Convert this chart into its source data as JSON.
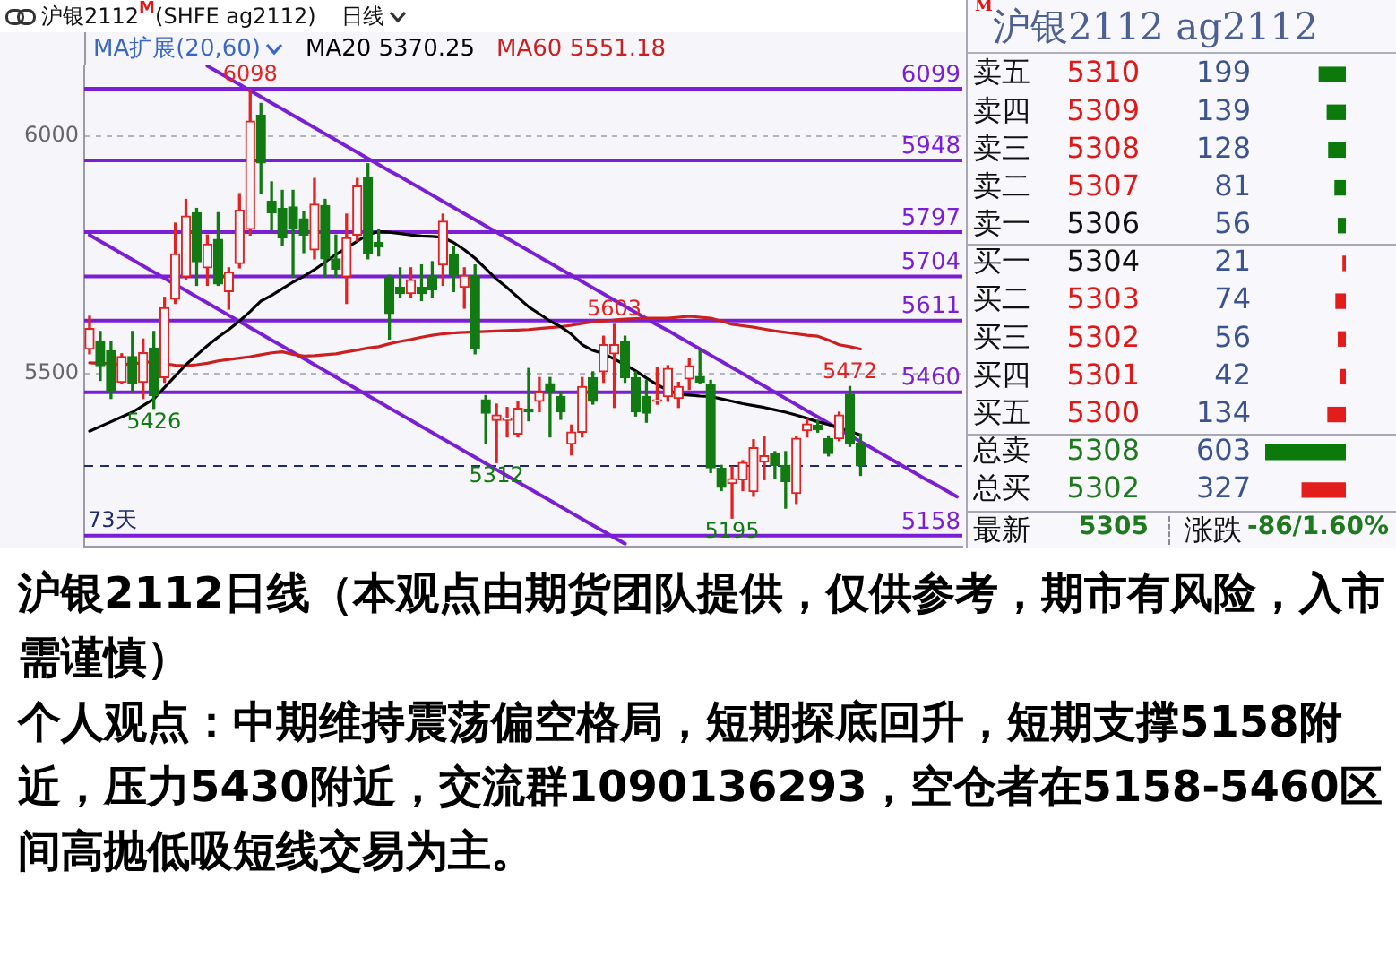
{
  "chart_data": [
    {
      "type": "candlestick",
      "title": "沪银2112$^{M}$(SHFE ag2112)",
      "subtitle": "日线",
      "legend_title": "MA扩展(20,60)",
      "legend": "top",
      "grid": "y",
      "tick_labels": "y",
      "categories": [
        null,
        null,
        null,
        null,
        null,
        null,
        null,
        null,
        null,
        null,
        null,
        null,
        null,
        null,
        null,
        null,
        null,
        null,
        null,
        null,
        null,
        null,
        null,
        null,
        null,
        null,
        null,
        null,
        null,
        null,
        null,
        null,
        null,
        null,
        null,
        null,
        null,
        null,
        null,
        null,
        null,
        null,
        null,
        null,
        null,
        null,
        null,
        null,
        null,
        null,
        null,
        null,
        null,
        null,
        null,
        null,
        null,
        null,
        null,
        null,
        null,
        null,
        null,
        null,
        null,
        null,
        null,
        null,
        null,
        null,
        null,
        null,
        null,
        null,
        null,
        null,
        null,
        null,
        null,
        null,
        null,
        null
      ],
      "ohlc": [
        [
          5551,
          5620,
          5541,
          5594
        ],
        [
          5568,
          5588,
          5485,
          5516
        ],
        [
          5547,
          5566,
          5447,
          5460
        ],
        [
          5481,
          5541,
          5479,
          5535
        ],
        [
          5535,
          5588,
          5460,
          5479
        ],
        [
          5481,
          5572,
          5447,
          5543
        ],
        [
          5553,
          5588,
          5426,
          5453
        ],
        [
          5491,
          5660,
          5481,
          5638
        ],
        [
          5656,
          5816,
          5647,
          5751
        ],
        [
          5703,
          5866,
          5697,
          5831
        ],
        [
          5838,
          5847,
          5685,
          5735
        ],
        [
          5722,
          5791,
          5685,
          5772
        ],
        [
          5782,
          5838,
          5685,
          5688
        ],
        [
          5672,
          5722,
          5635,
          5713
        ],
        [
          5731,
          5878,
          5722,
          5843
        ],
        [
          5803,
          6098,
          5791,
          6031
        ],
        [
          6043,
          6068,
          5878,
          5943
        ],
        [
          5862,
          5903,
          5801,
          5838
        ],
        [
          5847,
          5885,
          5769,
          5785
        ],
        [
          5850,
          5885,
          5703,
          5803
        ],
        [
          5825,
          5841,
          5754,
          5791
        ],
        [
          5760,
          5910,
          5741,
          5856
        ],
        [
          5853,
          5866,
          5703,
          5741
        ],
        [
          5741,
          5791,
          5703,
          5719
        ],
        [
          5703,
          5835,
          5647,
          5785
        ],
        [
          5791,
          5910,
          5778,
          5894
        ],
        [
          5913,
          5941,
          5741,
          5753
        ],
        [
          5775,
          5803,
          5747,
          5766
        ],
        [
          5701,
          5706,
          5572,
          5626
        ],
        [
          5681,
          5722,
          5660,
          5668
        ],
        [
          5668,
          5722,
          5660,
          5697
        ],
        [
          5681,
          5728,
          5653,
          5668
        ],
        [
          5706,
          5735,
          5660,
          5676
        ],
        [
          5728,
          5835,
          5685,
          5820
        ],
        [
          5750,
          5766,
          5672,
          5706
        ],
        [
          5681,
          5722,
          5637,
          5706
        ],
        [
          5706,
          5728,
          5541,
          5553
        ],
        [
          5444,
          5453,
          5353,
          5416
        ],
        [
          5401,
          5435,
          5312,
          5412
        ],
        [
          5401,
          5428,
          5366,
          5406
        ],
        [
          5372,
          5441,
          5366,
          5426
        ],
        [
          5425,
          5510,
          5400,
          5419
        ],
        [
          5441,
          5491,
          5419,
          5460
        ],
        [
          5478,
          5491,
          5366,
          5460
        ],
        [
          5451,
          5460,
          5403,
          5419
        ],
        [
          5351,
          5391,
          5328,
          5376
        ],
        [
          5376,
          5491,
          5366,
          5472
        ],
        [
          5491,
          5503,
          5435,
          5441
        ],
        [
          5503,
          5578,
          5481,
          5560
        ],
        [
          5541,
          5603,
          5428,
          5560
        ],
        [
          5566,
          5578,
          5481,
          5491
        ],
        [
          5491,
          5503,
          5410,
          5419
        ],
        [
          5451,
          5485,
          5397,
          5416
        ],
        [
          5441,
          5513,
          5435,
          5444
        ],
        [
          5451,
          5516,
          5441,
          5510
        ],
        [
          5447,
          5481,
          5428,
          5472
        ],
        [
          5488,
          5531,
          5466,
          5516
        ],
        [
          5493,
          5547,
          5478,
          5481
        ],
        [
          5475,
          5485,
          5291,
          5301
        ],
        [
          5300,
          5306,
          5253,
          5260
        ],
        [
          5268,
          5303,
          5195,
          5278
        ],
        [
          5276,
          5316,
          5253,
          5312
        ],
        [
          5251,
          5360,
          5241,
          5343
        ],
        [
          5313,
          5366,
          5276,
          5326
        ],
        [
          5331,
          5335,
          5278,
          5306
        ],
        [
          5306,
          5335,
          5216,
          5272
        ],
        [
          5247,
          5366,
          5226,
          5363
        ],
        [
          5379,
          5403,
          5366,
          5393
        ],
        [
          5391,
          5401,
          5376,
          5381
        ],
        [
          5362,
          5368,
          5326,
          5331
        ],
        [
          5362,
          5418,
          5358,
          5412
        ],
        [
          5456,
          5472,
          5346,
          5351
        ],
        [
          5353,
          5372,
          5285,
          5305
        ],
        null,
        null,
        null,
        null,
        null,
        null,
        null,
        null,
        null
      ],
      "colors": [
        "#e32222",
        "#127a12",
        "#127a12",
        "#e32222",
        "#127a12",
        "#e32222",
        "#127a12",
        "#e32222",
        "#e32222",
        "#e32222",
        "#127a12",
        "#e32222",
        "#127a12",
        "#e32222",
        "#e32222",
        "#e32222",
        "#127a12",
        "#127a12",
        "#127a12",
        "#127a12",
        "#127a12",
        "#e32222",
        "#127a12",
        "#127a12",
        "#e32222",
        "#e32222",
        "#127a12",
        "#127a12",
        "#127a12",
        "#127a12",
        "#e32222",
        "#127a12",
        "#127a12",
        "#e32222",
        "#127a12",
        "#e32222",
        "#127a12",
        "#127a12",
        "#e32222",
        "#e32222",
        "#e32222",
        "#127a12",
        "#e32222",
        "#127a12",
        "#127a12",
        "#e32222",
        "#e32222",
        "#127a12",
        "#e32222",
        "#e32222",
        "#127a12",
        "#127a12",
        "#127a12",
        "#e32222",
        "#e32222",
        "#e32222",
        "#e32222",
        "#127a12",
        "#127a12",
        "#127a12",
        "#e32222",
        "#e32222",
        "#e32222",
        "#e32222",
        "#127a12",
        "#127a12",
        "#e32222",
        "#e32222",
        "#127a12",
        "#127a12",
        "#e32222",
        "#127a12",
        "#127a12",
        null,
        null,
        null,
        null,
        null,
        null,
        null,
        null,
        null
      ],
      "series": [
        {
          "type": "line",
          "name": "MA20 5370.25",
          "color": "#000000",
          "values": [
            5378,
            5388,
            5398,
            5408,
            5418,
            5432,
            5446,
            5470,
            5494,
            5518,
            5538,
            5558,
            5576,
            5592,
            5610,
            5630,
            5652,
            5664,
            5678,
            5692,
            5704,
            5718,
            5734,
            5750,
            5764,
            5778,
            5792,
            5798,
            5797,
            5794,
            5791,
            5789,
            5788,
            5786,
            5775,
            5760,
            5742,
            5720,
            5698,
            5680,
            5660,
            5640,
            5625,
            5610,
            5598,
            5582,
            5560,
            5548,
            5541,
            5530,
            5518,
            5505,
            5490,
            5476,
            5464,
            5456,
            5454,
            5452,
            5451,
            5446,
            5441,
            5436,
            5432,
            5428,
            5423,
            5418,
            5412,
            5405,
            5398,
            5392,
            5385,
            5378,
            5370,
            null,
            null,
            null,
            null,
            null,
            null,
            null,
            null,
            null
          ]
        },
        {
          "type": "line",
          "name": "MA60 5551.18",
          "color": "#cc2020",
          "values": [
            5522,
            5521,
            5520,
            5518,
            5520,
            5522,
            5525,
            5520,
            5517,
            5516,
            5518,
            5521,
            5526,
            5529,
            5532,
            5535,
            5539,
            5543,
            5545,
            5540,
            5536,
            5537,
            5539,
            5541,
            5545,
            5549,
            5553,
            5556,
            5562,
            5567,
            5571,
            5576,
            5580,
            5583,
            5585,
            5586,
            5587,
            5588,
            5589,
            5590,
            5591,
            5592,
            5594,
            5596,
            5598,
            5601,
            5605,
            5608,
            5610,
            5612,
            5614,
            5615,
            5616,
            5616,
            5616,
            5618,
            5620,
            5618,
            5616,
            5610,
            5603,
            5600,
            5597,
            5593,
            5589,
            5586,
            5583,
            5580,
            5578,
            5570,
            5560,
            5556,
            5551,
            null,
            null,
            null,
            null,
            null,
            null,
            null,
            null,
            null
          ]
        },
        {
          "type": "line",
          "color": "#7b1fd4",
          "values": [
            null,
            null,
            null,
            null,
            null,
            null,
            null,
            null,
            null,
            null,
            null,
            6147,
            6134,
            6121,
            6108,
            6095,
            6082,
            6069,
            6056,
            6043,
            6030,
            6017,
            6004,
            5991,
            5978,
            5965,
            5952,
            5939,
            5926,
            5914,
            5901,
            5888,
            5875,
            5862,
            5849,
            5836,
            5823,
            5810,
            5797,
            5784,
            5771,
            5758,
            5745,
            5732,
            5719,
            5706,
            5693,
            5680,
            5667,
            5654,
            5641,
            5628,
            5615,
            5602,
            5590,
            5577,
            5564,
            5551,
            5538,
            5525,
            5512,
            5499,
            5486,
            5473,
            5460,
            5447,
            5434,
            5421,
            5408,
            5395,
            5382,
            5369,
            5356,
            5343,
            5330,
            5317,
            5304,
            5291,
            5278,
            5266,
            5253,
            5240
          ]
        },
        {
          "type": "line",
          "color": "#7b1fd4",
          "values": [
            5791,
            5778,
            5765,
            5752,
            5739,
            5726,
            5713,
            5700,
            5687,
            5674,
            5661,
            5648,
            5635,
            5622,
            5609,
            5596,
            5583,
            5570,
            5557,
            5544,
            5531,
            5518,
            5505,
            5492,
            5479,
            5466,
            5453,
            5440,
            5427,
            5414,
            5401,
            5388,
            5375,
            5362,
            5349,
            5336,
            5323,
            5310,
            5297,
            5284,
            5271,
            5258,
            5245,
            5232,
            5219,
            5206,
            5193,
            5180,
            5167,
            5154,
            5141,
            null,
            null,
            null,
            null,
            null,
            null,
            null,
            null,
            null,
            null,
            null,
            null,
            null,
            null,
            null,
            null,
            null,
            null,
            null,
            null,
            null,
            null,
            null,
            null,
            null,
            null,
            null,
            null,
            null,
            null,
            null
          ]
        }
      ],
      "ylim": [
        5135,
        6150
      ],
      "yticks": [
        5500,
        6000
      ],
      "ref_lines": [
        {
          "axis": "y",
          "value": 6099,
          "label": "6099",
          "color": "#7b1fd4"
        },
        {
          "axis": "y",
          "value": 5948,
          "label": "5948",
          "color": "#7b1fd4"
        },
        {
          "axis": "y",
          "value": 5797,
          "label": "5797",
          "color": "#7b1fd4"
        },
        {
          "axis": "y",
          "value": 5704,
          "label": "5704",
          "color": "#7b1fd4"
        },
        {
          "axis": "y",
          "value": 5611,
          "label": "5611",
          "color": "#7b1fd4"
        },
        {
          "axis": "y",
          "value": 5460,
          "label": "5460",
          "color": "#7b1fd4"
        },
        {
          "axis": "y",
          "value": 5158,
          "label": "5158",
          "color": "#7b1fd4"
        },
        {
          "axis": "y",
          "value": 5305,
          "color": "#1f2b6e",
          "line_style": "dashed"
        }
      ],
      "annotations": [
        {
          "text": "6098",
          "y": 6098
        },
        {
          "text": "5426",
          "y": 5426
        },
        {
          "text": "5312",
          "y": 5312
        },
        {
          "text": "5603",
          "y": 5603
        },
        {
          "text": "5195",
          "y": 5195
        },
        {
          "text": "5472",
          "y": 5472
        },
        "73天"
      ]
    },
    {
      "type": "bar",
      "orientation": "horizontal",
      "title": "$^{M}$沪银2112 ag2112",
      "categories": [
        "卖五",
        "卖四",
        "卖三",
        "卖二",
        "卖一",
        "买一",
        "买二",
        "买三",
        "买四",
        "买五",
        "总卖",
        "总买"
      ],
      "values": [
        199,
        139,
        128,
        81,
        56,
        21,
        74,
        56,
        42,
        134,
        603,
        327
      ],
      "colors": [
        "#0b7a0b",
        "#0b7a0b",
        "#0b7a0b",
        "#0b7a0b",
        "#0b7a0b",
        "#e31c1c",
        "#e31c1c",
        "#e31c1c",
        "#e31c1c",
        "#e31c1c",
        "#0b7a0b",
        "#e31c1c"
      ],
      "xlim": [
        603,
        0
      ],
      "data_labels": true,
      "tick_labels": "y",
      "annotations": [
        "5310",
        "5309",
        "5308",
        "5307",
        "5306",
        "5304",
        "5303",
        "5302",
        "5301",
        "5300",
        "5308",
        "5302",
        "最新",
        "5305",
        "涨跌",
        "-86/1.60%"
      ]
    },
    {
      "type": "other",
      "title": "沪银2112日线（本观点由期货团队提供，仅供参考，期市有风险，入市需谨慎）",
      "annotations": [
        "个人观点：中期维持震荡偏空格局，短期探底回升，短期支撑5158附近，压力5430附近，交流群1090136293，空仓者在5158-5460区间高抛低吸短线交易为主。"
      ]
    }
  ]
}
